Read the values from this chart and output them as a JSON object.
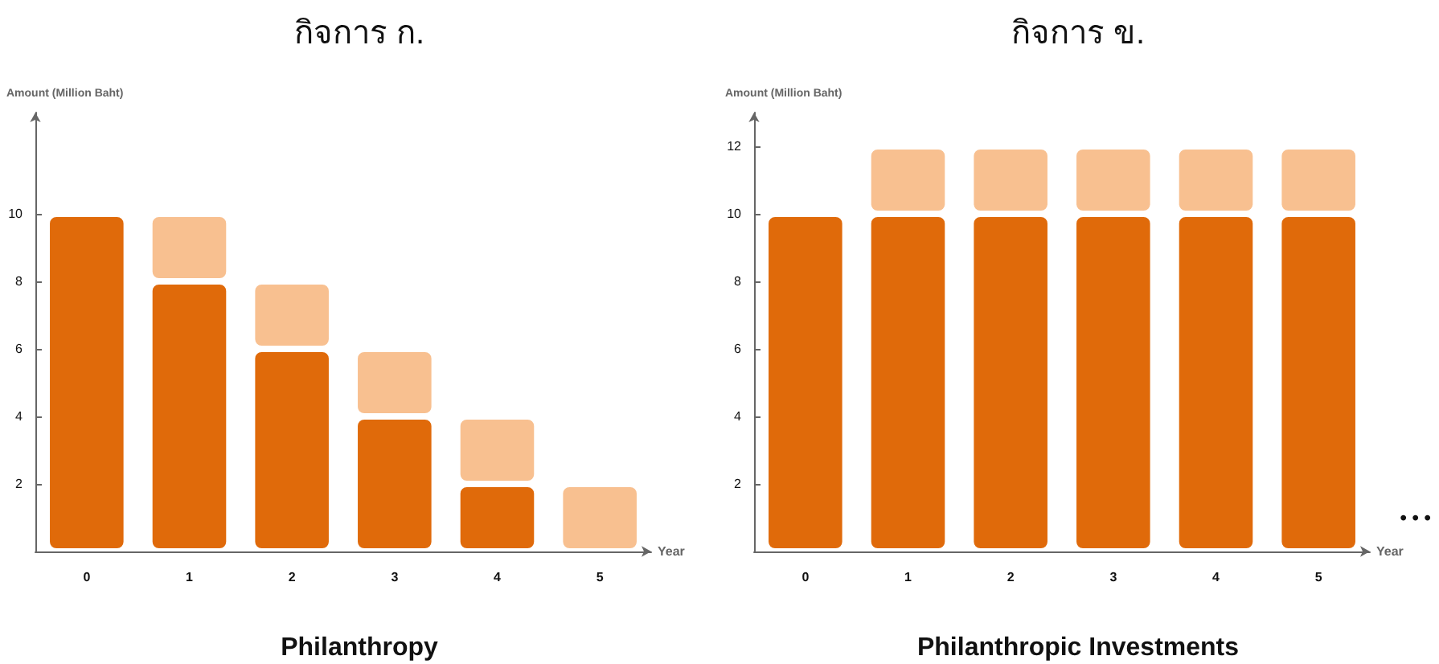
{
  "chart_data": [
    {
      "type": "bar",
      "title": "กิจการ ก.",
      "xlabel": "Year",
      "ylabel": "Amount (Million Baht)",
      "categories": [
        "0",
        "1",
        "2",
        "3",
        "4",
        "5"
      ],
      "stacked": true,
      "series": [
        {
          "color": "#e06a0a",
          "values": [
            10,
            8,
            6,
            4,
            2,
            0
          ]
        },
        {
          "color": "#f8c090",
          "values": [
            0,
            2,
            2,
            2,
            2,
            2
          ]
        }
      ],
      "ylim": [
        0,
        13
      ],
      "yticks": [
        2,
        4,
        6,
        8,
        10
      ],
      "grid": false,
      "annotations": [
        "Philanthropy"
      ]
    },
    {
      "type": "bar",
      "title": "กิจการ ข.",
      "xlabel": "Year",
      "ylabel": "Amount (Million Baht)",
      "categories": [
        "0",
        "1",
        "2",
        "3",
        "4",
        "5"
      ],
      "stacked": true,
      "series": [
        {
          "color": "#e06a0a",
          "values": [
            10,
            10,
            10,
            10,
            10,
            10
          ]
        },
        {
          "color": "#f8c090",
          "values": [
            0,
            2,
            2,
            2,
            2,
            2
          ]
        }
      ],
      "ylim": [
        0,
        13
      ],
      "yticks": [
        2,
        4,
        6,
        8,
        10,
        12
      ],
      "grid": false,
      "annotations": [
        "Philanthropic Investments",
        "• • •"
      ]
    }
  ]
}
